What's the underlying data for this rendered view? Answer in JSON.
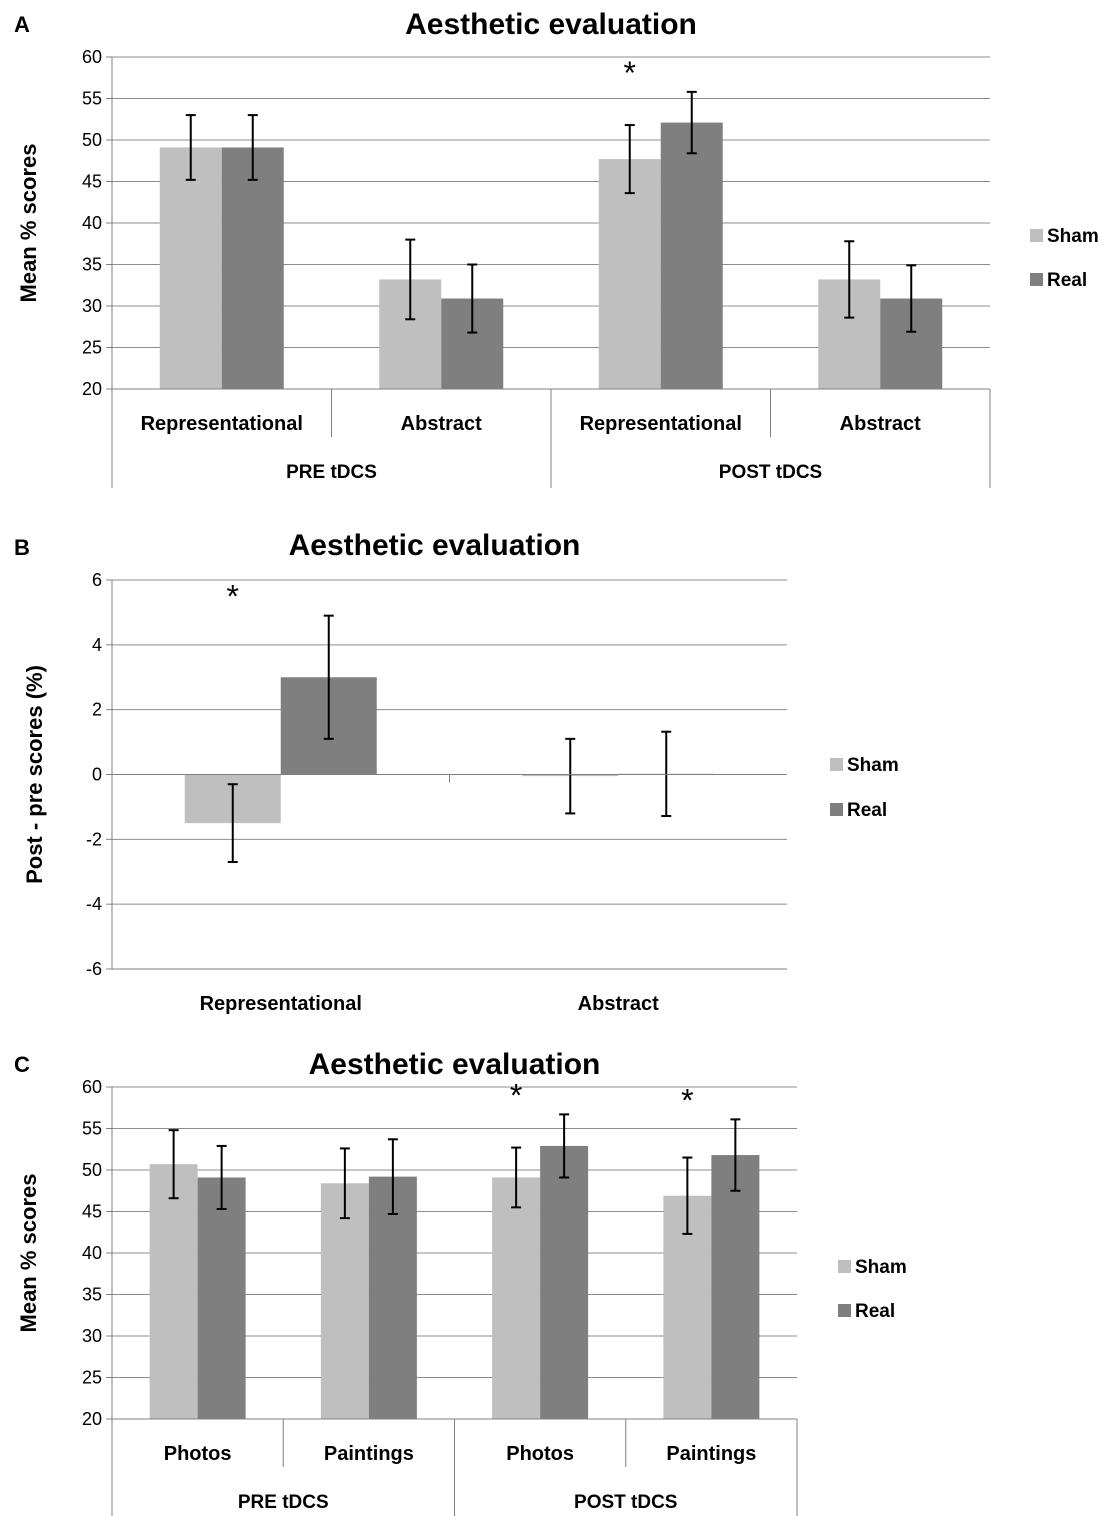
{
  "colors": {
    "sham": "#bfbfbf",
    "real": "#7f7f7f",
    "grid": "#8c8c8c",
    "axis": "#808080"
  },
  "chart_data": [
    {
      "panel": "A",
      "type": "bar",
      "title": "Aesthetic evaluation",
      "ylabel": "Mean % scores",
      "ylim": [
        20,
        60
      ],
      "yticks": [
        20,
        25,
        30,
        35,
        40,
        45,
        50,
        55,
        60
      ],
      "grid": true,
      "legend_position": "right",
      "categories": [
        "Representational",
        "Abstract",
        "Representational",
        "Abstract"
      ],
      "groups": [
        {
          "label": "PRE tDCS",
          "categories": [
            0,
            1
          ]
        },
        {
          "label": "POST tDCS",
          "categories": [
            2,
            3
          ]
        }
      ],
      "series": [
        {
          "name": "Sham",
          "values": [
            49.1,
            33.2,
            47.7,
            33.2
          ],
          "errors": [
            3.9,
            4.8,
            4.1,
            4.6
          ]
        },
        {
          "name": "Real",
          "values": [
            49.1,
            30.9,
            52.1,
            30.9
          ],
          "errors": [
            3.9,
            4.1,
            3.7,
            4.0
          ]
        }
      ],
      "annotations": [
        {
          "text": "*",
          "category": 2
        }
      ]
    },
    {
      "panel": "B",
      "type": "bar",
      "title": "Aesthetic evaluation",
      "ylabel": "Post - pre scores (%)",
      "ylim": [
        -6,
        6
      ],
      "yticks": [
        -6,
        -4,
        -2,
        0,
        2,
        4,
        6
      ],
      "grid": true,
      "legend_position": "right",
      "categories": [
        "Representational",
        "Abstract"
      ],
      "groups": [],
      "series": [
        {
          "name": "Sham",
          "values": [
            -1.5,
            -0.05
          ],
          "errors": [
            1.2,
            1.15
          ]
        },
        {
          "name": "Real",
          "values": [
            3.0,
            0.02
          ],
          "errors": [
            1.9,
            1.3
          ]
        }
      ],
      "annotations": [
        {
          "text": "*",
          "category": 0
        }
      ]
    },
    {
      "panel": "C",
      "type": "bar",
      "title": "Aesthetic evaluation",
      "ylabel": "Mean % scores",
      "ylim": [
        20,
        60
      ],
      "yticks": [
        20,
        25,
        30,
        35,
        40,
        45,
        50,
        55,
        60
      ],
      "grid": true,
      "legend_position": "right",
      "categories": [
        "Photos",
        "Paintings",
        "Photos",
        "Paintings"
      ],
      "groups": [
        {
          "label": "PRE tDCS",
          "categories": [
            0,
            1
          ]
        },
        {
          "label": "POST tDCS",
          "categories": [
            2,
            3
          ]
        }
      ],
      "series": [
        {
          "name": "Sham",
          "values": [
            50.7,
            48.4,
            49.1,
            46.9
          ],
          "errors": [
            4.1,
            4.2,
            3.6,
            4.6
          ]
        },
        {
          "name": "Real",
          "values": [
            49.1,
            49.2,
            52.9,
            51.8
          ],
          "errors": [
            3.8,
            4.5,
            3.8,
            4.3
          ]
        }
      ],
      "annotations": [
        {
          "text": "*",
          "category": 2
        },
        {
          "text": "*",
          "category": 3
        }
      ]
    }
  ]
}
